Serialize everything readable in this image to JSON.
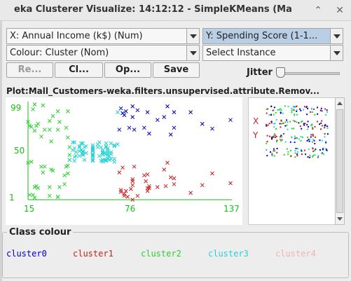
{
  "window": {
    "title": "eka Clusterer Visualize: 14:12:12 - SimpleKMeans (Ma"
  },
  "controls": {
    "x_axis_select": "X: Annual Income (k$) (Num)",
    "y_axis_select": "Y: Spending Score (1-1...",
    "colour_select": "Colour: Cluster (Nom)",
    "instance_select": "Select Instance",
    "buttons": {
      "reset": "Re...",
      "clear": "Cl...",
      "open": "Op...",
      "save": "Save"
    },
    "jitter_label": "Jitter",
    "jitter_value": 0
  },
  "plot": {
    "title": "Plot:Mall_Customers-weka.filters.unsupervised.attribute.Remov..."
  },
  "chart_data": {
    "type": "scatter",
    "x_ticks": [
      "15",
      "76",
      "137"
    ],
    "y_ticks": [
      "99",
      "50",
      "1"
    ],
    "xlim": [
      15,
      137
    ],
    "ylim": [
      1,
      99
    ],
    "marker": "x",
    "series": [
      {
        "name": "cluster0",
        "color": "#0000c8",
        "points": [
          [
            70,
            73
          ],
          [
            71,
            95
          ],
          [
            72,
            90
          ],
          [
            73,
            88
          ],
          [
            74,
            92
          ],
          [
            76,
            75
          ],
          [
            78,
            97
          ],
          [
            78,
            86
          ],
          [
            79,
            73
          ],
          [
            81,
            93
          ],
          [
            85,
            75
          ],
          [
            87,
            91
          ],
          [
            88,
            69
          ],
          [
            93,
            83
          ],
          [
            97,
            86
          ],
          [
            99,
            97
          ],
          [
            101,
            68
          ],
          [
            103,
            91
          ],
          [
            103,
            75
          ],
          [
            113,
            91
          ],
          [
            120,
            79
          ],
          [
            126,
            74
          ],
          [
            137,
            83
          ]
        ]
      },
      {
        "name": "cluster1",
        "color": "#c81e1e",
        "points": [
          [
            70,
            29
          ],
          [
            71,
            11
          ],
          [
            71,
            9
          ],
          [
            72,
            34
          ],
          [
            73,
            5
          ],
          [
            73,
            7
          ],
          [
            74,
            10
          ],
          [
            75,
            4
          ],
          [
            77,
            12
          ],
          [
            78,
            22
          ],
          [
            78,
            16
          ],
          [
            78,
            1
          ],
          [
            78,
            20
          ],
          [
            79,
            35
          ],
          [
            81,
            5
          ],
          [
            85,
            26
          ],
          [
            86,
            20
          ],
          [
            87,
            27
          ],
          [
            87,
            13
          ],
          [
            87,
            10
          ],
          [
            88,
            13
          ],
          [
            88,
            15
          ],
          [
            93,
            14
          ],
          [
            97,
            32
          ],
          [
            98,
            15
          ],
          [
            99,
            39
          ],
          [
            101,
            24
          ],
          [
            103,
            17
          ],
          [
            103,
            23
          ],
          [
            113,
            8
          ],
          [
            120,
            16
          ],
          [
            126,
            28
          ],
          [
            137,
            18
          ]
        ]
      },
      {
        "name": "cluster2",
        "color": "#28d228",
        "points": [
          [
            15,
            39
          ],
          [
            15,
            81
          ],
          [
            16,
            6
          ],
          [
            16,
            77
          ],
          [
            17,
            40
          ],
          [
            17,
            76
          ],
          [
            18,
            6
          ],
          [
            18,
            94
          ],
          [
            19,
            3
          ],
          [
            19,
            72
          ],
          [
            19,
            14
          ],
          [
            19,
            99
          ],
          [
            20,
            15
          ],
          [
            20,
            77
          ],
          [
            21,
            13
          ],
          [
            21,
            79
          ],
          [
            23,
            35
          ],
          [
            23,
            66
          ],
          [
            24,
            29
          ],
          [
            24,
            98
          ],
          [
            25,
            35
          ],
          [
            25,
            73
          ],
          [
            28,
            5
          ],
          [
            28,
            73
          ],
          [
            28,
            14
          ],
          [
            28,
            82
          ],
          [
            29,
            32
          ],
          [
            29,
            61
          ],
          [
            30,
            31
          ],
          [
            30,
            87
          ],
          [
            33,
            4
          ],
          [
            33,
            73
          ],
          [
            33,
            4
          ],
          [
            33,
            92
          ],
          [
            34,
            14
          ],
          [
            34,
            81
          ],
          [
            37,
            17
          ],
          [
            37,
            26
          ],
          [
            38,
            35
          ],
          [
            38,
            75
          ],
          [
            39,
            36
          ],
          [
            39,
            92
          ],
          [
            39,
            28
          ],
          [
            39,
            65
          ],
          [
            40,
            55
          ],
          [
            40,
            47
          ],
          [
            40,
            42
          ]
        ]
      },
      {
        "name": "cluster3",
        "color": "#28d2d2",
        "points": [
          [
            40,
            42
          ],
          [
            42,
            52
          ],
          [
            42,
            60
          ],
          [
            43,
            54
          ],
          [
            43,
            60
          ],
          [
            43,
            45
          ],
          [
            43,
            41
          ],
          [
            44,
            50
          ],
          [
            44,
            46
          ],
          [
            46,
            51
          ],
          [
            46,
            46
          ],
          [
            46,
            56
          ],
          [
            46,
            55
          ],
          [
            47,
            52
          ],
          [
            47,
            59
          ],
          [
            48,
            51
          ],
          [
            48,
            59
          ],
          [
            48,
            50
          ],
          [
            48,
            48
          ],
          [
            48,
            59
          ],
          [
            48,
            47
          ],
          [
            49,
            55
          ],
          [
            49,
            42
          ],
          [
            50,
            49
          ],
          [
            50,
            56
          ],
          [
            54,
            47
          ],
          [
            54,
            54
          ],
          [
            54,
            53
          ],
          [
            54,
            48
          ],
          [
            54,
            52
          ],
          [
            54,
            42
          ],
          [
            54,
            51
          ],
          [
            54,
            55
          ],
          [
            54,
            41
          ],
          [
            54,
            44
          ],
          [
            54,
            57
          ],
          [
            54,
            46
          ],
          [
            57,
            58
          ],
          [
            57,
            55
          ],
          [
            58,
            60
          ],
          [
            58,
            46
          ],
          [
            59,
            55
          ],
          [
            59,
            41
          ],
          [
            60,
            49
          ],
          [
            60,
            40
          ],
          [
            60,
            42
          ],
          [
            60,
            52
          ],
          [
            60,
            47
          ],
          [
            60,
            50
          ],
          [
            61,
            42
          ],
          [
            61,
            49
          ],
          [
            62,
            41
          ],
          [
            62,
            48
          ],
          [
            62,
            59
          ],
          [
            62,
            55
          ],
          [
            62,
            56
          ],
          [
            62,
            42
          ],
          [
            63,
            50
          ],
          [
            63,
            46
          ],
          [
            63,
            43
          ],
          [
            63,
            48
          ],
          [
            63,
            52
          ],
          [
            63,
            54
          ],
          [
            64,
            42
          ],
          [
            64,
            46
          ],
          [
            65,
            48
          ],
          [
            65,
            50
          ],
          [
            65,
            43
          ],
          [
            65,
            59
          ],
          [
            67,
            43
          ],
          [
            67,
            57
          ],
          [
            67,
            56
          ],
          [
            67,
            40
          ],
          [
            69,
            58
          ],
          [
            69,
            91
          ]
        ]
      },
      {
        "name": "cluster4",
        "color": "#f0b4b4",
        "points": []
      }
    ]
  },
  "mini_panel": {
    "labels": [
      "X",
      "Y"
    ]
  },
  "legend": {
    "title": "Class colour",
    "classes": [
      {
        "name": "cluster0",
        "color": "#0000c8"
      },
      {
        "name": "cluster1",
        "color": "#c81e1e"
      },
      {
        "name": "cluster2",
        "color": "#28d228"
      },
      {
        "name": "cluster3",
        "color": "#28d2d2"
      },
      {
        "name": "cluster4",
        "color": "#f0b4b4"
      }
    ]
  }
}
